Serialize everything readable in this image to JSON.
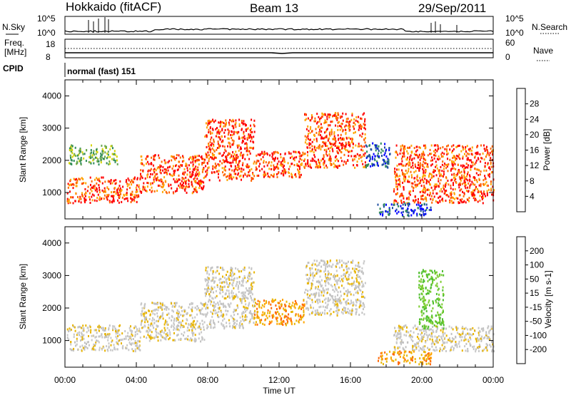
{
  "header": {
    "station": "Hokkaido (fitACF)",
    "beam": "Beam 13",
    "date": "29/Sep/2011"
  },
  "noise_panel": {
    "left_label": "N.Sky",
    "right_label": "N.Search",
    "left_ticks": [
      "10^5",
      "10^0"
    ],
    "right_ticks": [
      "10^5",
      "10^0"
    ]
  },
  "freq_panel": {
    "left_label_1": "Freq.",
    "left_label_2": "[MHz]",
    "right_label": "Nave",
    "left_ticks": [
      "18",
      "8"
    ],
    "right_ticks": [
      "60",
      "0"
    ]
  },
  "cpid": {
    "label": "CPID",
    "value": "normal (fast) 151"
  },
  "chart_data": [
    {
      "type": "heatmap",
      "parameter": "Power",
      "ylabel": "Slant Range [km]",
      "xlabel": "Time UT",
      "x_ticks": [
        "00:00",
        "04:00",
        "08:00",
        "12:00",
        "16:00",
        "20:00",
        "00:00"
      ],
      "x_range_hours": [
        0,
        24
      ],
      "y_ticks": [
        1000,
        2000,
        3000,
        4000
      ],
      "y_range": [
        180,
        4500
      ],
      "colorbar": {
        "label": "Power [dB]",
        "ticks": [
          "28",
          "24",
          "20",
          "16",
          "12",
          "8",
          "4"
        ],
        "colors": [
          "#0000ff",
          "#1f4fa0",
          "#2e8b57",
          "#6aa84f",
          "#d4d400",
          "#ffa500",
          "#ff6600",
          "#ff0000"
        ]
      },
      "bands": [
        {
          "t0": 0.1,
          "t1": 4.2,
          "r0": 700,
          "r1": 1500,
          "level": "high"
        },
        {
          "t0": 4.2,
          "t1": 7.8,
          "r0": 1000,
          "r1": 2200,
          "level": "high"
        },
        {
          "t0": 7.8,
          "t1": 10.6,
          "r0": 1400,
          "r1": 3300,
          "level": "high"
        },
        {
          "t0": 10.6,
          "t1": 13.4,
          "r0": 1500,
          "r1": 2300,
          "level": "high"
        },
        {
          "t0": 13.4,
          "t1": 16.8,
          "r0": 1800,
          "r1": 3500,
          "level": "high"
        },
        {
          "t0": 16.8,
          "t1": 18.2,
          "r0": 1800,
          "r1": 2600,
          "level": "low"
        },
        {
          "t0": 18.4,
          "t1": 24.0,
          "r0": 700,
          "r1": 2500,
          "level": "high"
        },
        {
          "t0": 17.5,
          "t1": 20.5,
          "r0": 300,
          "r1": 700,
          "level": "low"
        },
        {
          "t0": 0.2,
          "t1": 3.0,
          "r0": 1900,
          "r1": 2500,
          "level": "mid"
        }
      ]
    },
    {
      "type": "heatmap",
      "parameter": "Velocity",
      "ylabel": "Slant Range [km]",
      "xlabel": "Time UT",
      "x_ticks": [
        "00:00",
        "04:00",
        "08:00",
        "12:00",
        "16:00",
        "20:00",
        "00:00"
      ],
      "x_range_hours": [
        0,
        24
      ],
      "y_ticks": [
        1000,
        2000,
        3000,
        4000
      ],
      "y_range": [
        180,
        4500
      ],
      "colorbar": {
        "label": "Velocity [m s-1]",
        "ticks": [
          "200",
          "100",
          "50",
          "15",
          "-15",
          "-50",
          "-100",
          "-200"
        ],
        "colors": [
          "#ff0000",
          "#ff6600",
          "#ffa500",
          "#e8b400",
          "#c8c8c8",
          "#7ccc2e",
          "#2e8b57",
          "#1f4fa0",
          "#0000ff"
        ]
      },
      "bands": [
        {
          "t0": 0.1,
          "t1": 4.2,
          "r0": 700,
          "r1": 1500,
          "level": "grey"
        },
        {
          "t0": 4.2,
          "t1": 7.8,
          "r0": 1000,
          "r1": 2200,
          "level": "grey"
        },
        {
          "t0": 7.8,
          "t1": 10.6,
          "r0": 1400,
          "r1": 3300,
          "level": "grey"
        },
        {
          "t0": 10.6,
          "t1": 13.4,
          "r0": 1500,
          "r1": 2300,
          "level": "orange"
        },
        {
          "t0": 13.4,
          "t1": 16.8,
          "r0": 1800,
          "r1": 3500,
          "level": "grey"
        },
        {
          "t0": 18.4,
          "t1": 24.0,
          "r0": 700,
          "r1": 1500,
          "level": "grey"
        },
        {
          "t0": 19.8,
          "t1": 21.2,
          "r0": 1400,
          "r1": 3200,
          "level": "green"
        },
        {
          "t0": 17.5,
          "t1": 20.5,
          "r0": 300,
          "r1": 700,
          "level": "orange"
        }
      ]
    }
  ]
}
